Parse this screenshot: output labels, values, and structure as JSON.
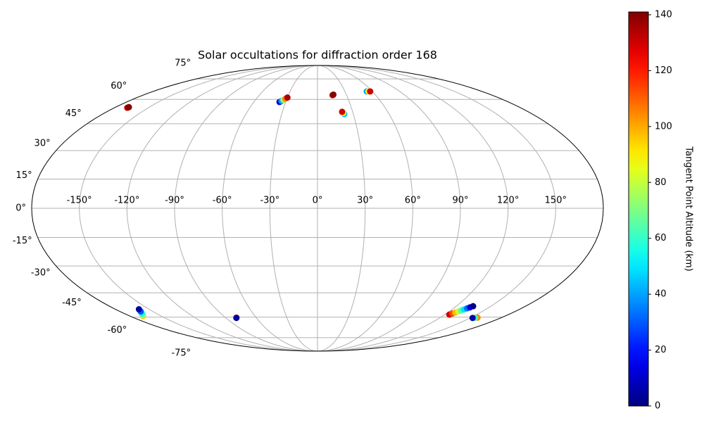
{
  "chart_data": {
    "type": "scatter",
    "projection": "mollweide",
    "title": "Solar occultations for diffraction order 168",
    "xlim": [
      -180,
      180
    ],
    "ylim": [
      -90,
      90
    ],
    "grid": true,
    "xticks": [
      {
        "value": -150,
        "label": "-150°"
      },
      {
        "value": -120,
        "label": "-120°"
      },
      {
        "value": -90,
        "label": "-90°"
      },
      {
        "value": -60,
        "label": "-60°"
      },
      {
        "value": -30,
        "label": "-30°"
      },
      {
        "value": 0,
        "label": "0°"
      },
      {
        "value": 30,
        "label": "30°"
      },
      {
        "value": 60,
        "label": "60°"
      },
      {
        "value": 90,
        "label": "90°"
      },
      {
        "value": 120,
        "label": "120°"
      },
      {
        "value": 150,
        "label": "150°"
      }
    ],
    "yticks": [
      {
        "value": -75,
        "label": "-75°"
      },
      {
        "value": -60,
        "label": "-60°"
      },
      {
        "value": -45,
        "label": "-45°"
      },
      {
        "value": -30,
        "label": "-30°"
      },
      {
        "value": -15,
        "label": "-15°"
      },
      {
        "value": 0,
        "label": "0°"
      },
      {
        "value": 15,
        "label": "15°"
      },
      {
        "value": 30,
        "label": "30°"
      },
      {
        "value": 45,
        "label": "45°"
      },
      {
        "value": 60,
        "label": "60°"
      },
      {
        "value": 75,
        "label": "75°"
      }
    ],
    "colormap": "jet",
    "colorbar": {
      "label": "Tangent Point Altitude (km)",
      "lim": [
        0,
        141
      ],
      "ticks": [
        0,
        20,
        40,
        60,
        80,
        100,
        120,
        140
      ]
    },
    "x": [
      -168.6,
      -168.4,
      -168.2,
      -35.8,
      -34.4,
      -33.0,
      -31.5,
      -30.0,
      15.5,
      16.0,
      16.5,
      53.9,
      55.7,
      57.6,
      22.4,
      21.7,
      21.0,
      -167.6,
      -165.5,
      -163.5,
      -161.0,
      -159.0,
      -79.2,
      -79.7,
      124.3,
      125.6,
      126.9,
      128.2,
      129.5,
      130.7,
      132.0,
      133.3,
      134.6,
      156.6,
      154.5,
      152.4
    ],
    "y": [
      54.6,
      54.8,
      55.0,
      58.3,
      59.0,
      59.7,
      60.4,
      61.2,
      62.8,
      63.0,
      63.2,
      65.4,
      65.4,
      65.4,
      50.7,
      51.4,
      52.1,
      -59.3,
      -58.5,
      -57.6,
      -56.3,
      -54.9,
      -60.2,
      -60.5,
      -58.3,
      -57.6,
      -57.0,
      -56.3,
      -55.7,
      -55.0,
      -54.3,
      -53.7,
      -53.0,
      -60.3,
      -60.4,
      -60.5
    ],
    "color_values": [
      128,
      134,
      140,
      10,
      40,
      75,
      105,
      135,
      125,
      135,
      140,
      40,
      90,
      130,
      45,
      90,
      130,
      95,
      75,
      55,
      30,
      5,
      110,
      5,
      130,
      114,
      98,
      81,
      65,
      49,
      33,
      16,
      0,
      105,
      60,
      5
    ]
  }
}
